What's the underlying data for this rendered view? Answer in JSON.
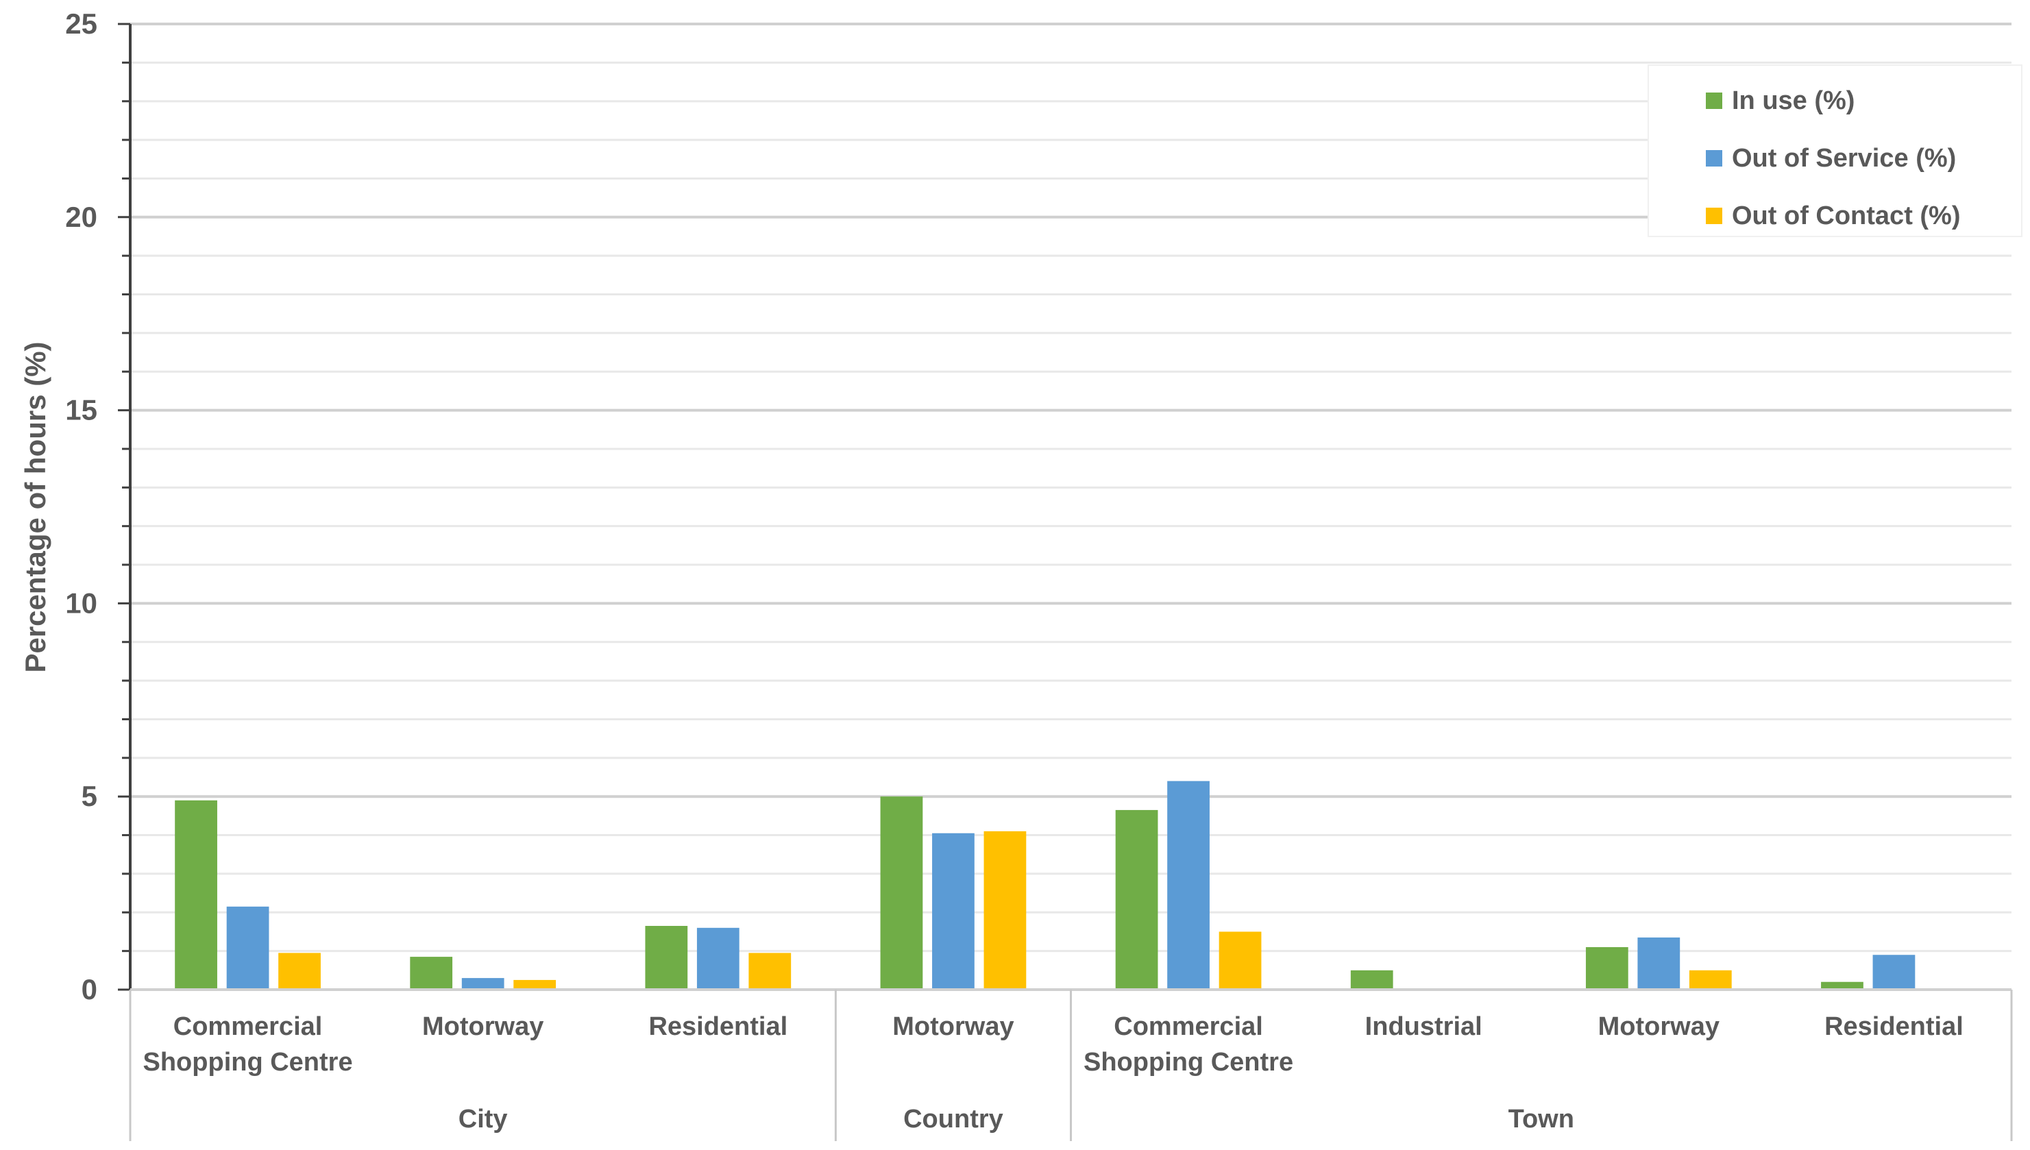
{
  "chart_data": {
    "type": "bar",
    "title": "",
    "xlabel": "",
    "ylabel": "Percentage of hours (%)",
    "ylim": [
      0,
      25
    ],
    "yticks": [
      0,
      5,
      10,
      15,
      20,
      25
    ],
    "grid": true,
    "legend_position": "top-right",
    "groups": [
      {
        "name": "City",
        "categories": [
          "Commercial\nShopping Centre",
          "Motorway",
          "Residential"
        ]
      },
      {
        "name": "Country",
        "categories": [
          "Motorway"
        ]
      },
      {
        "name": "Town",
        "categories": [
          "Commercial\nShopping Centre",
          "Industrial",
          "Motorway",
          "Residential"
        ]
      }
    ],
    "categories": [
      "Commercial\nShopping Centre",
      "Motorway",
      "Residential",
      "Motorway",
      "Commercial\nShopping Centre",
      "Industrial",
      "Motorway",
      "Residential"
    ],
    "series": [
      {
        "name": "In use (%)",
        "color": "#70AD47",
        "values": [
          4.9,
          0.85,
          1.65,
          5.0,
          4.65,
          0.5,
          1.1,
          0.2
        ]
      },
      {
        "name": "Out of Service (%)",
        "color": "#5B9BD5",
        "values": [
          2.15,
          0.3,
          1.6,
          4.05,
          5.4,
          0,
          1.35,
          0.9
        ]
      },
      {
        "name": "Out of Contact (%)",
        "color": "#FFC000",
        "values": [
          0.95,
          0.25,
          0.95,
          4.1,
          1.5,
          0,
          0.5,
          0
        ]
      }
    ]
  }
}
